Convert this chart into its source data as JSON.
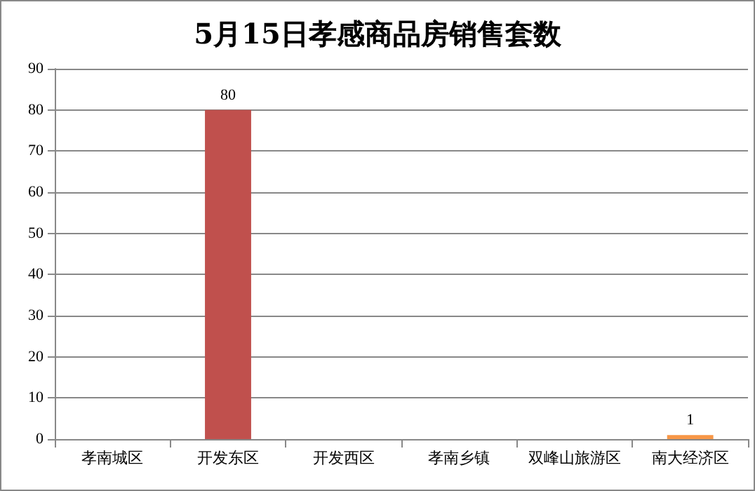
{
  "chart_data": {
    "type": "bar",
    "title": "5月15日孝感商品房销售套数",
    "categories": [
      "孝南城区",
      "开发东区",
      "开发西区",
      "孝南乡镇",
      "双峰山旅游区",
      "南大经济区"
    ],
    "values": [
      0,
      80,
      0,
      0,
      0,
      1
    ],
    "value_labels": [
      null,
      "80",
      null,
      null,
      null,
      "1"
    ],
    "colors": [
      "#c0504d",
      "#c0504d",
      "#c0504d",
      "#c0504d",
      "#c0504d",
      "#f79646"
    ],
    "ylim": [
      0,
      90
    ],
    "yticks": [
      0,
      10,
      20,
      30,
      40,
      50,
      60,
      70,
      80,
      90
    ],
    "grid": "y"
  }
}
